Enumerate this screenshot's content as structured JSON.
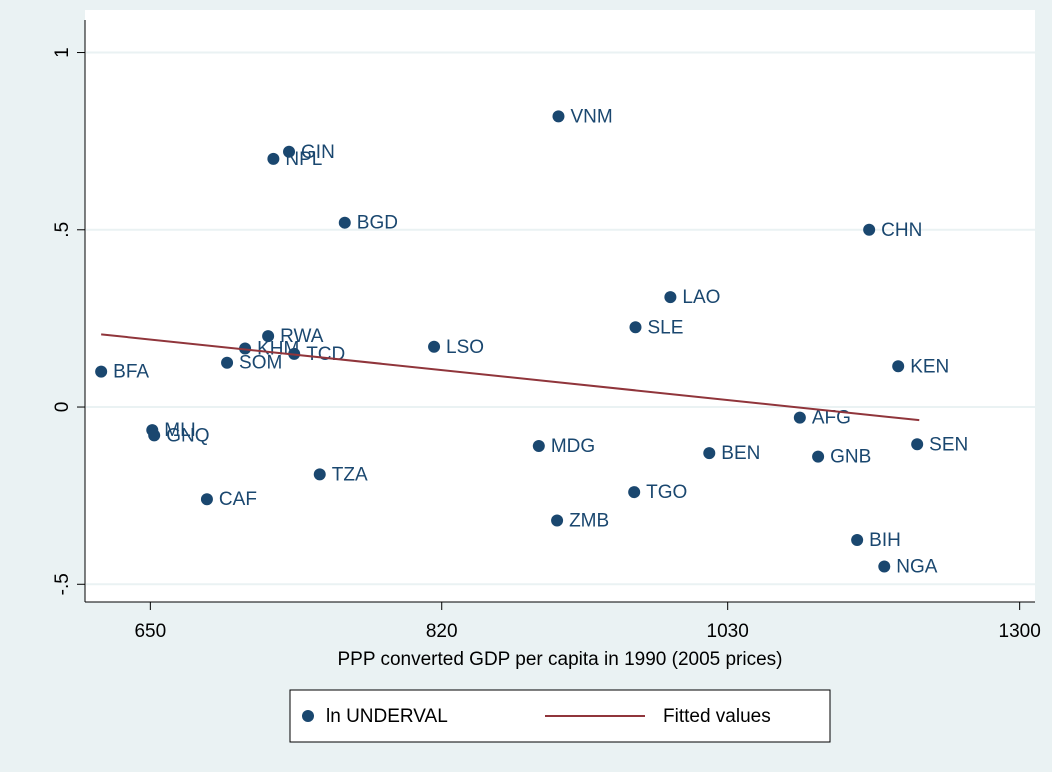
{
  "chart_data": {
    "type": "scatter",
    "xlabel": "PPP converted GDP per capita in 1990 (2005 prices)",
    "xscale": "log",
    "xlim": [
      617,
      1316
    ],
    "xticks": [
      650,
      820,
      1030,
      1300
    ],
    "ylim": [
      -0.55,
      1.12
    ],
    "yticks": [
      {
        "value": -0.5,
        "label": "-.5"
      },
      0,
      {
        "value": 0.5,
        "label": ".5"
      },
      1
    ],
    "grid": true,
    "series": [
      {
        "name": "ln UNDERVAL",
        "color": "#1a476f",
        "labels": [
          "BFA",
          "MLI",
          "GNQ",
          "CAF",
          "SOM",
          "KHM",
          "RWA",
          "TCD",
          "NPL",
          "GIN",
          "TZA",
          "BGD",
          "LSO",
          "MDG",
          "VNM",
          "ZMB",
          "TGO",
          "SLE",
          "LAO",
          "BEN",
          "AFG",
          "GNB",
          "BIH",
          "CHN",
          "NGA",
          "KEN",
          "SEN"
        ],
        "x": [
          625,
          651,
          652,
          680,
          691,
          701,
          714,
          729,
          717,
          726,
          744,
          759,
          815,
          886,
          900,
          899,
          956,
          957,
          984,
          1015,
          1091,
          1107,
          1142,
          1153,
          1167,
          1180,
          1198
        ],
        "values": [
          0.1,
          -0.065,
          -0.08,
          -0.26,
          0.125,
          0.165,
          0.2,
          0.15,
          0.7,
          0.72,
          -0.19,
          0.52,
          0.17,
          -0.11,
          0.82,
          -0.32,
          -0.24,
          0.225,
          0.31,
          -0.13,
          -0.03,
          -0.14,
          -0.375,
          0.5,
          -0.45,
          0.115,
          -0.105
        ]
      },
      {
        "name": "Fitted values",
        "color": "#90353b",
        "line": true,
        "x": [
          625,
          1200
        ],
        "values": [
          0.205,
          -0.037
        ]
      }
    ]
  }
}
